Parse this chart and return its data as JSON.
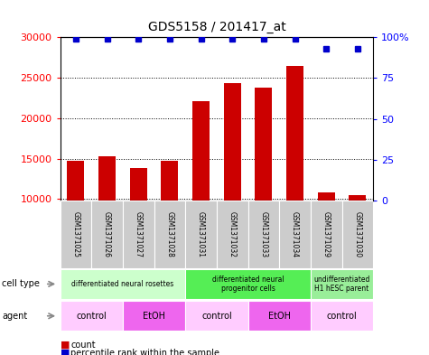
{
  "title": "GDS5158 / 201417_at",
  "samples": [
    "GSM1371025",
    "GSM1371026",
    "GSM1371027",
    "GSM1371028",
    "GSM1371031",
    "GSM1371032",
    "GSM1371033",
    "GSM1371034",
    "GSM1371029",
    "GSM1371030"
  ],
  "counts": [
    14700,
    15300,
    13800,
    14700,
    22100,
    24300,
    23800,
    26400,
    10800,
    10450
  ],
  "percentile_y": [
    99,
    99,
    99,
    99,
    99,
    99,
    99,
    99,
    93,
    93
  ],
  "bar_color": "#cc0000",
  "dot_color": "#0000cc",
  "ylim_left": [
    9800,
    30000
  ],
  "ylim_right": [
    0,
    100
  ],
  "yticks_left": [
    10000,
    15000,
    20000,
    25000,
    30000
  ],
  "yticks_right": [
    0,
    25,
    50,
    75,
    100
  ],
  "cell_type_groups": [
    {
      "label": "differentiated neural rosettes",
      "start": 0,
      "end": 4,
      "color": "#ccffcc"
    },
    {
      "label": "differentiated neural\nprogenitor cells",
      "start": 4,
      "end": 8,
      "color": "#55ee55"
    },
    {
      "label": "undifferentiated\nH1 hESC parent",
      "start": 8,
      "end": 10,
      "color": "#99ee99"
    }
  ],
  "agent_groups": [
    {
      "label": "control",
      "start": 0,
      "end": 2,
      "color": "#ffccff"
    },
    {
      "label": "EtOH",
      "start": 2,
      "end": 4,
      "color": "#ee66ee"
    },
    {
      "label": "control",
      "start": 4,
      "end": 6,
      "color": "#ffccff"
    },
    {
      "label": "EtOH",
      "start": 6,
      "end": 8,
      "color": "#ee66ee"
    },
    {
      "label": "control",
      "start": 8,
      "end": 10,
      "color": "#ffccff"
    }
  ],
  "sample_bg_color": "#cccccc",
  "cell_type_label": "cell type",
  "agent_label": "agent",
  "legend_count_label": "count",
  "legend_percentile_label": "percentile rank within the sample",
  "background_color": "#ffffff"
}
